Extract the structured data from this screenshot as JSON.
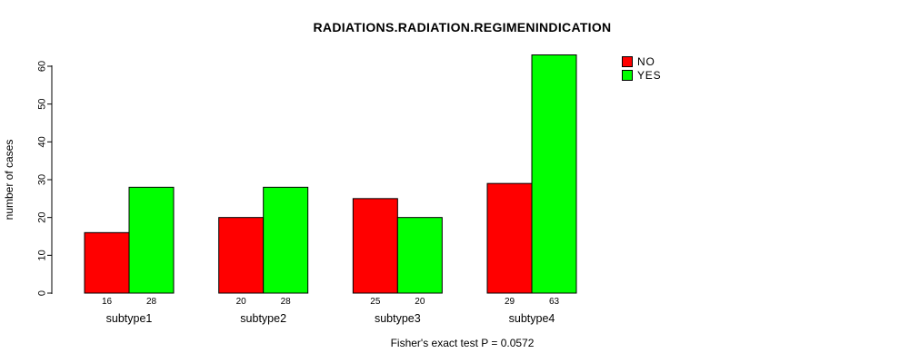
{
  "chart_data": {
    "type": "bar",
    "title": "RADIATIONS.RADIATION.REGIMENINDICATION",
    "categories": [
      "subtype1",
      "subtype2",
      "subtype3",
      "subtype4"
    ],
    "series": [
      {
        "name": "NO",
        "color": "#ff0000",
        "values": [
          16,
          20,
          25,
          29
        ]
      },
      {
        "name": "YES",
        "color": "#00ff00",
        "values": [
          28,
          28,
          20,
          63
        ]
      }
    ],
    "xlabel": "",
    "ylabel": "number of cases",
    "yticks": [
      0,
      10,
      20,
      30,
      40,
      50,
      60
    ],
    "ylim": [
      0,
      60
    ],
    "bar_value_labels": [
      [
        16,
        28
      ],
      [
        20,
        28
      ],
      [
        25,
        20
      ],
      [
        29,
        63
      ]
    ],
    "legend_position": "top-right",
    "grid": false,
    "annotation": "Fisher's exact test P = 0.0572",
    "bar_border_color": "#000000",
    "text_color": "#000000",
    "background_color": "#ffffff"
  }
}
